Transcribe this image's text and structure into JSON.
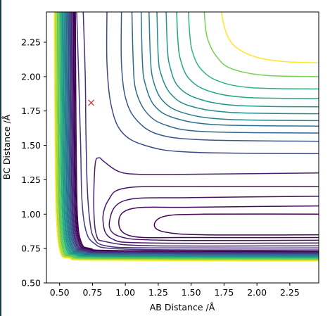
{
  "chart_data": {
    "type": "contour",
    "title": "",
    "xlabel": "AB Distance /Å",
    "ylabel": "BC Distance /Å",
    "xlim": [
      0.4,
      2.47
    ],
    "ylim": [
      0.5,
      2.47
    ],
    "xticks": [
      "0.50",
      "0.75",
      "1.00",
      "1.25",
      "1.50",
      "1.75",
      "2.00",
      "2.25"
    ],
    "yticks": [
      "0.50",
      "0.75",
      "1.00",
      "1.25",
      "1.50",
      "1.75",
      "2.00",
      "2.25"
    ],
    "colormap": "viridis",
    "grid": false,
    "marker": {
      "symbol": "x",
      "color": "#d62728",
      "x": 0.74,
      "y": 1.81
    },
    "series": [
      {
        "level": 1,
        "color": "#440154",
        "path": [
          [
            2.47,
            1.0
          ],
          [
            1.6,
            1.0
          ],
          [
            1.3,
            0.985
          ],
          [
            1.22,
            0.92
          ],
          [
            1.3,
            0.87
          ],
          [
            1.6,
            0.85
          ],
          [
            2.47,
            0.85
          ]
        ]
      },
      {
        "level": 2,
        "color": "#46085c",
        "path": [
          [
            2.47,
            1.06
          ],
          [
            1.5,
            1.05
          ],
          [
            1.05,
            1.04
          ],
          [
            0.95,
            0.94
          ],
          [
            1.05,
            0.84
          ],
          [
            1.5,
            0.83
          ],
          [
            2.47,
            0.83
          ]
        ]
      },
      {
        "level": 3,
        "color": "#471063",
        "path": [
          [
            2.47,
            1.13
          ],
          [
            1.5,
            1.12
          ],
          [
            1.0,
            1.1
          ],
          [
            0.88,
            0.95
          ],
          [
            0.95,
            0.84
          ],
          [
            1.3,
            0.81
          ],
          [
            2.47,
            0.81
          ]
        ]
      },
      {
        "level": 4,
        "color": "#481769",
        "path": [
          [
            2.47,
            1.2
          ],
          [
            1.5,
            1.2
          ],
          [
            1.0,
            1.19
          ],
          [
            0.87,
            1.1
          ],
          [
            0.83,
            0.95
          ],
          [
            0.9,
            0.82
          ],
          [
            1.2,
            0.79
          ],
          [
            2.47,
            0.79
          ]
        ]
      },
      {
        "level": 5,
        "color": "#481f70",
        "path": [
          [
            2.47,
            1.3
          ],
          [
            1.5,
            1.29
          ],
          [
            1.1,
            1.29
          ],
          [
            0.95,
            1.31
          ],
          [
            0.84,
            1.38
          ],
          [
            0.8,
            1.41
          ],
          [
            0.77,
            1.36
          ],
          [
            0.76,
            1.05
          ],
          [
            0.78,
            0.85
          ],
          [
            0.85,
            0.8
          ],
          [
            1.2,
            0.77
          ],
          [
            2.47,
            0.77
          ]
        ]
      },
      {
        "level": 6,
        "color": "#472d7b",
        "path": [
          [
            0.68,
            2.47
          ],
          [
            0.695,
            2.0
          ],
          [
            0.7,
            1.6
          ],
          [
            0.71,
            1.2
          ],
          [
            0.73,
            0.95
          ],
          [
            0.76,
            0.83
          ],
          [
            0.85,
            0.77
          ],
          [
            1.2,
            0.755
          ],
          [
            2.47,
            0.755
          ]
        ]
      },
      {
        "level": 7,
        "color": "#443a83",
        "path": [
          [
            0.63,
            2.47
          ],
          [
            0.645,
            2.0
          ],
          [
            0.66,
            1.5
          ],
          [
            0.67,
            1.1
          ],
          [
            0.7,
            0.88
          ],
          [
            0.76,
            0.79
          ],
          [
            0.9,
            0.75
          ],
          [
            1.5,
            0.74
          ],
          [
            2.47,
            0.74
          ]
        ]
      },
      {
        "level": 8,
        "color": "#3e4989",
        "path": [
          [
            0.86,
            2.47
          ],
          [
            0.86,
            2.1
          ],
          [
            0.89,
            1.8
          ],
          [
            0.97,
            1.6
          ],
          [
            1.15,
            1.5
          ],
          [
            1.5,
            1.45
          ],
          [
            2.47,
            1.44
          ]
        ]
      },
      {
        "level": 9,
        "color": "#38588c",
        "path": [
          [
            0.97,
            2.47
          ],
          [
            0.97,
            2.1
          ],
          [
            1.0,
            1.85
          ],
          [
            1.08,
            1.69
          ],
          [
            1.25,
            1.58
          ],
          [
            1.6,
            1.54
          ],
          [
            2.47,
            1.53
          ]
        ]
      },
      {
        "level": 10,
        "color": "#31668e",
        "path": [
          [
            1.05,
            2.47
          ],
          [
            1.06,
            2.1
          ],
          [
            1.08,
            1.9
          ],
          [
            1.16,
            1.74
          ],
          [
            1.3,
            1.65
          ],
          [
            1.6,
            1.6
          ],
          [
            2.47,
            1.59
          ]
        ]
      },
      {
        "level": 11,
        "color": "#2c728e",
        "path": [
          [
            1.12,
            2.47
          ],
          [
            1.13,
            2.1
          ],
          [
            1.15,
            1.95
          ],
          [
            1.22,
            1.79
          ],
          [
            1.37,
            1.7
          ],
          [
            1.7,
            1.65
          ],
          [
            2.47,
            1.64
          ]
        ]
      },
      {
        "level": 12,
        "color": "#277f8e",
        "path": [
          [
            1.18,
            2.47
          ],
          [
            1.19,
            2.15
          ],
          [
            1.21,
            1.98
          ],
          [
            1.28,
            1.83
          ],
          [
            1.43,
            1.74
          ],
          [
            1.75,
            1.69
          ],
          [
            2.47,
            1.68
          ]
        ]
      },
      {
        "level": 13,
        "color": "#228c8d",
        "path": [
          [
            1.24,
            2.47
          ],
          [
            1.25,
            2.15
          ],
          [
            1.27,
            2.02
          ],
          [
            1.34,
            1.88
          ],
          [
            1.48,
            1.79
          ],
          [
            1.8,
            1.74
          ],
          [
            2.47,
            1.73
          ]
        ]
      },
      {
        "level": 14,
        "color": "#1f988b",
        "path": [
          [
            1.31,
            2.47
          ],
          [
            1.32,
            2.2
          ],
          [
            1.34,
            2.07
          ],
          [
            1.4,
            1.93
          ],
          [
            1.55,
            1.84
          ],
          [
            1.85,
            1.79
          ],
          [
            2.47,
            1.78
          ]
        ]
      },
      {
        "level": 15,
        "color": "#22a785",
        "path": [
          [
            1.39,
            2.47
          ],
          [
            1.4,
            2.25
          ],
          [
            1.42,
            2.12
          ],
          [
            1.48,
            1.99
          ],
          [
            1.62,
            1.9
          ],
          [
            1.9,
            1.85
          ],
          [
            2.47,
            1.84
          ]
        ]
      },
      {
        "level": 16,
        "color": "#2fb47c",
        "path": [
          [
            1.48,
            2.47
          ],
          [
            1.49,
            2.3
          ],
          [
            1.51,
            2.18
          ],
          [
            1.57,
            2.06
          ],
          [
            1.7,
            1.97
          ],
          [
            1.95,
            1.92
          ],
          [
            2.47,
            1.91
          ]
        ]
      },
      {
        "level": 17,
        "color": "#75d054",
        "path": [
          [
            1.6,
            2.47
          ],
          [
            1.61,
            2.35
          ],
          [
            1.63,
            2.26
          ],
          [
            1.69,
            2.15
          ],
          [
            1.8,
            2.06
          ],
          [
            2.05,
            2.01
          ],
          [
            2.47,
            2.0
          ]
        ]
      },
      {
        "level": 18,
        "color": "#fde725",
        "path": [
          [
            1.73,
            2.47
          ],
          [
            1.75,
            2.37
          ],
          [
            1.79,
            2.27
          ],
          [
            1.86,
            2.2
          ],
          [
            2.0,
            2.14
          ],
          [
            2.2,
            2.11
          ],
          [
            2.47,
            2.1
          ]
        ]
      }
    ],
    "wall_band": {
      "colors": [
        "#440154",
        "#472d7b",
        "#3b528b",
        "#2c728e",
        "#21918c",
        "#28ae80",
        "#5ec962",
        "#addc30",
        "#fde725"
      ],
      "levels": 22
    }
  }
}
